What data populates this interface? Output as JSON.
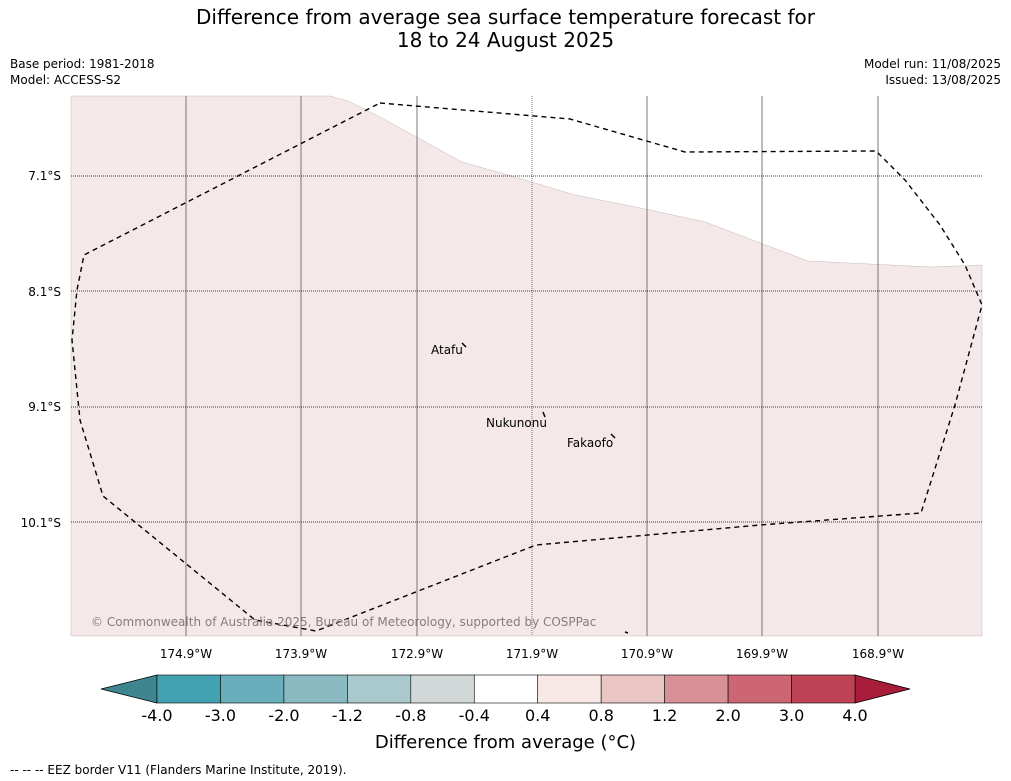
{
  "title": {
    "line1": "Difference from average sea surface temperature forecast for",
    "line2": "18 to 24 August 2025"
  },
  "meta": {
    "base_period": "Base period: 1981-2018",
    "model": "Model: ACCESS-S2",
    "model_run": "Model run: 11/08/2025",
    "issued": "Issued: 13/08/2025"
  },
  "map": {
    "land_fill_color": "#f4e9e8",
    "latitudes": [
      "7.1°S",
      "8.1°S",
      "9.1°S",
      "10.1°S"
    ],
    "longitudes": [
      "174.9°W",
      "173.9°W",
      "172.9°W",
      "171.9°W",
      "170.9°W",
      "169.9°W",
      "168.9°W"
    ],
    "places": [
      "Atafu",
      "Nukunonu",
      "Fakaofo"
    ],
    "copyright": "© Commonwealth of Australia 2025, Bureau of Meteorology, supported by COSPPac"
  },
  "colorbar": {
    "ticks": [
      "-4.0",
      "-3.0",
      "-2.0",
      "-1.2",
      "-0.8",
      "-0.4",
      "0.4",
      "0.8",
      "1.2",
      "2.0",
      "3.0",
      "4.0"
    ],
    "colors": [
      "#43a2b1",
      "#68aebb",
      "#8bb9c2",
      "#aac9cc",
      "#d2d7d7",
      "#ffffff",
      "#f7e7e5",
      "#e9c6c3",
      "#d79096",
      "#cc6673",
      "#be4455"
    ],
    "under_color": "#3f858f",
    "over_color": "#a81e3a",
    "label": "Difference from average (°C)"
  },
  "footnote": "-- -- -- EEZ border V11 (Flanders Marine Institute, 2019)."
}
